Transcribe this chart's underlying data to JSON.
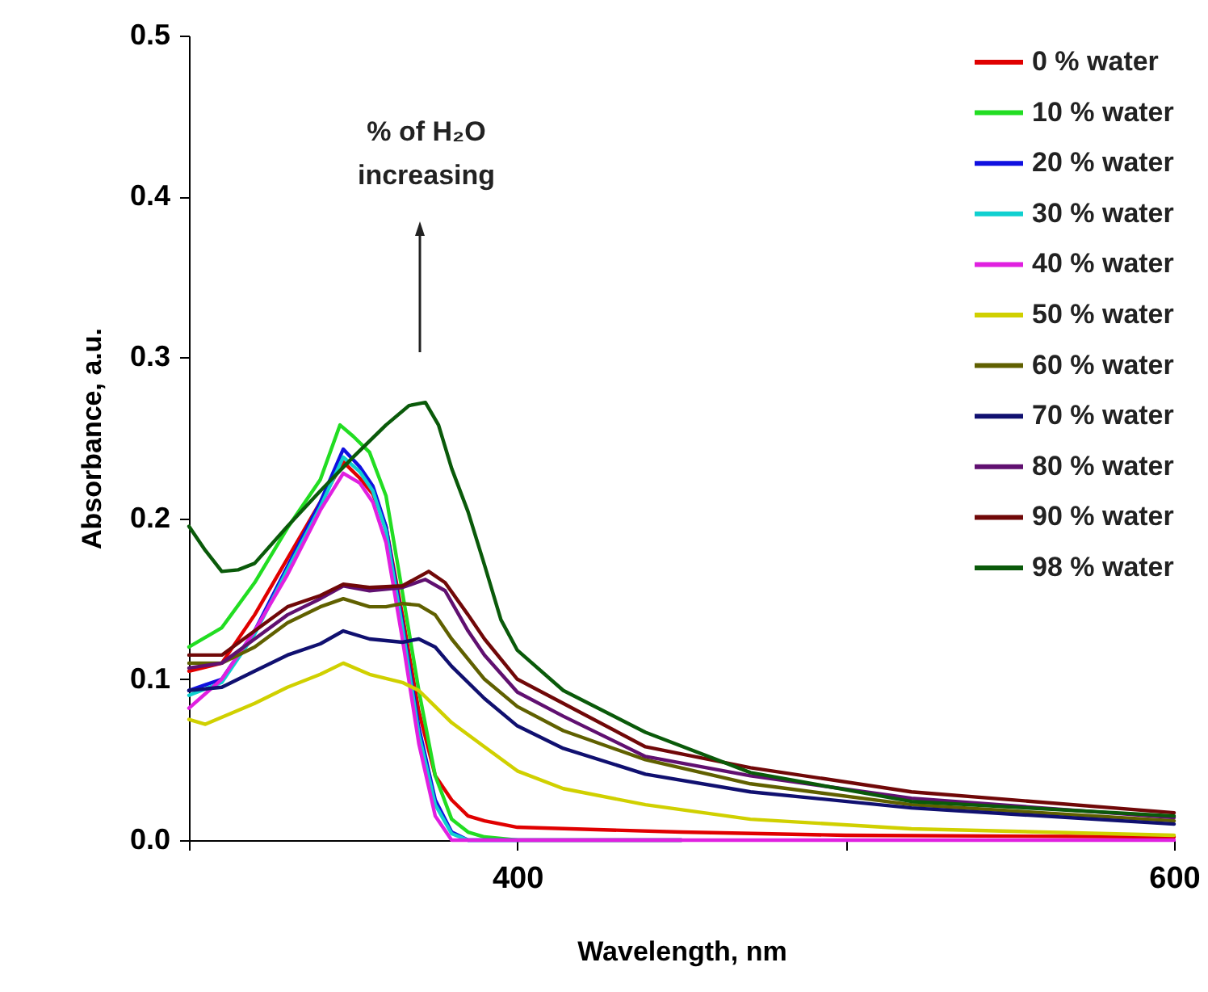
{
  "chart_data": {
    "type": "line",
    "xlabel": "Wavelength, nm",
    "ylabel": "Absorbance, a.u.",
    "xlim": [
      300,
      600
    ],
    "xticks": [
      {
        "value": 300,
        "label": null
      },
      400,
      {
        "value": 500,
        "label": null
      },
      600
    ],
    "ylim": [
      0,
      0.5
    ],
    "yticks": [
      {
        "value": 0,
        "label": "0.0"
      },
      0.1,
      0.2,
      0.3,
      0.4,
      0.5
    ],
    "grid": false,
    "legend": "top right",
    "marker": "none",
    "line_style": "solid",
    "annotations": [
      "% of H₂O\nincreasing"
    ],
    "series": [
      {
        "name": "0 % water",
        "color": "#e00000",
        "x": [
          300,
          310,
          320,
          330,
          340,
          347,
          352,
          356,
          360,
          365,
          370,
          375,
          380,
          385,
          390,
          400,
          450,
          500,
          600
        ],
        "values": [
          0.105,
          0.11,
          0.14,
          0.175,
          0.21,
          0.235,
          0.225,
          0.215,
          0.195,
          0.14,
          0.08,
          0.04,
          0.025,
          0.015,
          0.012,
          0.008,
          0.005,
          0.003,
          0.002
        ]
      },
      {
        "name": "10 % water",
        "color": "#22dd22",
        "x": [
          300,
          310,
          320,
          330,
          340,
          346,
          350,
          355,
          360,
          365,
          370,
          375,
          380,
          385,
          390,
          400,
          450
        ],
        "values": [
          0.12,
          0.132,
          0.16,
          0.194,
          0.224,
          0.258,
          0.251,
          0.241,
          0.214,
          0.154,
          0.093,
          0.04,
          0.013,
          0.005,
          0.002,
          0,
          0
        ]
      },
      {
        "name": "20 % water",
        "color": "#1010e0",
        "x": [
          300,
          310,
          320,
          330,
          340,
          347,
          352,
          356,
          360,
          365,
          370,
          375,
          380,
          385,
          400,
          450
        ],
        "values": [
          0.093,
          0.1,
          0.13,
          0.17,
          0.21,
          0.243,
          0.232,
          0.22,
          0.195,
          0.135,
          0.07,
          0.025,
          0.005,
          0,
          0,
          0
        ]
      },
      {
        "name": "30 % water",
        "color": "#10d0d0",
        "x": [
          300,
          310,
          320,
          330,
          340,
          347,
          352,
          356,
          360,
          365,
          370,
          375,
          380,
          385,
          400
        ],
        "values": [
          0.09,
          0.098,
          0.128,
          0.168,
          0.207,
          0.238,
          0.229,
          0.217,
          0.192,
          0.132,
          0.066,
          0.022,
          0.004,
          0,
          0
        ]
      },
      {
        "name": "40 % water",
        "color": "#e020e0",
        "x": [
          300,
          310,
          320,
          330,
          340,
          347,
          352,
          356,
          360,
          365,
          370,
          375,
          380,
          400,
          450,
          500,
          600
        ],
        "values": [
          0.082,
          0.1,
          0.13,
          0.165,
          0.205,
          0.228,
          0.222,
          0.21,
          0.185,
          0.125,
          0.06,
          0.015,
          0,
          0,
          0,
          0,
          0
        ]
      },
      {
        "name": "50 % water",
        "color": "#d0d000",
        "x": [
          300,
          305,
          320,
          330,
          340,
          347,
          355,
          365,
          370,
          375,
          380,
          390,
          400,
          414,
          439,
          471,
          520,
          600
        ],
        "values": [
          0.075,
          0.072,
          0.085,
          0.095,
          0.103,
          0.11,
          0.103,
          0.098,
          0.093,
          0.083,
          0.073,
          0.058,
          0.043,
          0.032,
          0.022,
          0.013,
          0.007,
          0.003
        ]
      },
      {
        "name": "60 % water",
        "color": "#606000",
        "x": [
          300,
          310,
          320,
          330,
          340,
          347,
          355,
          360,
          365,
          370,
          375,
          380,
          390,
          400,
          414,
          439,
          471,
          520,
          600
        ],
        "values": [
          0.11,
          0.11,
          0.12,
          0.135,
          0.145,
          0.15,
          0.145,
          0.145,
          0.147,
          0.146,
          0.14,
          0.125,
          0.1,
          0.083,
          0.068,
          0.05,
          0.035,
          0.022,
          0.012
        ]
      },
      {
        "name": "70 % water",
        "color": "#101070",
        "x": [
          300,
          310,
          320,
          330,
          340,
          347,
          355,
          365,
          370,
          375,
          380,
          390,
          400,
          414,
          439,
          471,
          520,
          600
        ],
        "values": [
          0.093,
          0.095,
          0.105,
          0.115,
          0.122,
          0.13,
          0.125,
          0.123,
          0.125,
          0.12,
          0.108,
          0.088,
          0.071,
          0.057,
          0.041,
          0.03,
          0.02,
          0.01
        ]
      },
      {
        "name": "80 % water",
        "color": "#601070",
        "x": [
          300,
          310,
          320,
          330,
          340,
          347,
          355,
          365,
          372,
          378,
          385,
          390,
          400,
          414,
          439,
          471,
          520,
          600
        ],
        "values": [
          0.107,
          0.11,
          0.125,
          0.14,
          0.15,
          0.158,
          0.155,
          0.157,
          0.162,
          0.155,
          0.13,
          0.115,
          0.092,
          0.077,
          0.052,
          0.04,
          0.026,
          0.014
        ]
      },
      {
        "name": "90 % water",
        "color": "#700808",
        "x": [
          300,
          310,
          320,
          330,
          340,
          347,
          355,
          365,
          373,
          378,
          385,
          390,
          400,
          414,
          439,
          471,
          520,
          600
        ],
        "values": [
          0.115,
          0.115,
          0.13,
          0.145,
          0.152,
          0.159,
          0.157,
          0.158,
          0.167,
          0.16,
          0.14,
          0.125,
          0.1,
          0.085,
          0.058,
          0.045,
          0.03,
          0.017
        ]
      },
      {
        "name": "98 % water",
        "color": "#0a5a0a",
        "x": [
          300,
          305,
          310,
          315,
          320,
          330,
          340,
          350,
          360,
          367,
          372,
          376,
          380,
          385,
          390,
          395,
          400,
          414,
          439,
          471,
          520,
          600
        ],
        "values": [
          0.195,
          0.18,
          0.167,
          0.168,
          0.172,
          0.195,
          0.217,
          0.238,
          0.258,
          0.27,
          0.272,
          0.258,
          0.231,
          0.204,
          0.171,
          0.137,
          0.118,
          0.093,
          0.067,
          0.042,
          0.024,
          0.015
        ]
      }
    ]
  }
}
